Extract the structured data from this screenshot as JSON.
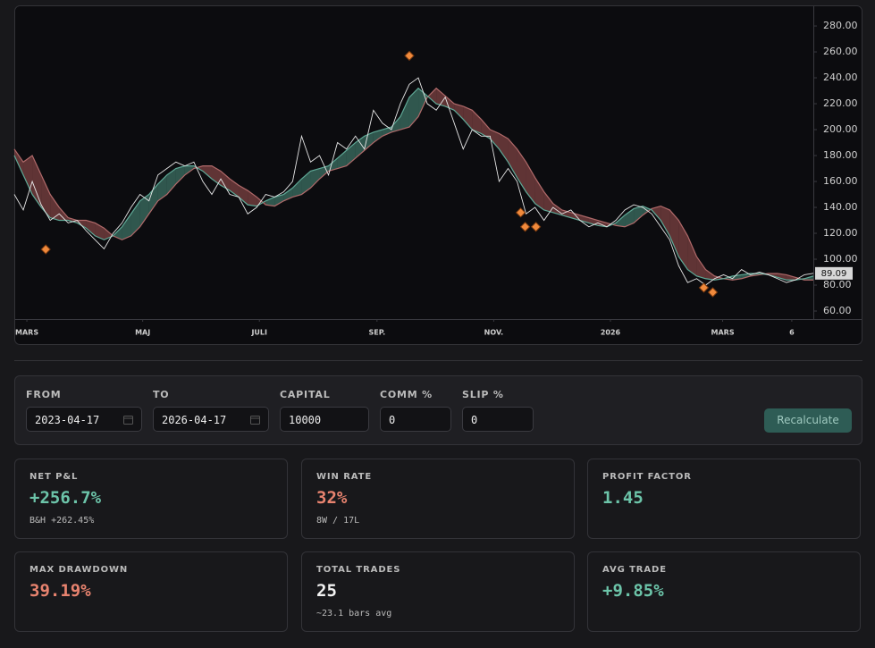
{
  "chart_data": {
    "type": "line",
    "xlim": [
      0,
      89
    ],
    "ylim": [
      53.8,
      295.9
    ],
    "yticks": [
      {
        "value": 60,
        "label": "60.00"
      },
      {
        "value": 80,
        "label": "80.00"
      },
      {
        "value": 100,
        "label": "100.00"
      },
      {
        "value": 120,
        "label": "120.00"
      },
      {
        "value": 140,
        "label": "140.00"
      },
      {
        "value": 160,
        "label": "160.00"
      },
      {
        "value": 180,
        "label": "180.00"
      },
      {
        "value": 200,
        "label": "200.00"
      },
      {
        "value": 220,
        "label": "220.00"
      },
      {
        "value": 240,
        "label": "240.00"
      },
      {
        "value": 260,
        "label": "260.00"
      },
      {
        "value": 280,
        "label": "280.00"
      }
    ],
    "xticks": [
      {
        "value": 1.4,
        "label": "MARS"
      },
      {
        "value": 14.3,
        "label": "MAJ"
      },
      {
        "value": 27.3,
        "label": "JULI"
      },
      {
        "value": 40.4,
        "label": "SEP."
      },
      {
        "value": 53.4,
        "label": "NOV."
      },
      {
        "value": 66.4,
        "label": "2026"
      },
      {
        "value": 78.9,
        "label": "MARS"
      },
      {
        "value": 86.6,
        "label": "6"
      }
    ],
    "x": [
      0,
      1,
      2,
      3,
      4,
      5,
      6,
      7,
      8,
      9,
      10,
      11,
      12,
      13,
      14,
      15,
      16,
      17,
      18,
      19,
      20,
      21,
      22,
      23,
      24,
      25,
      26,
      27,
      28,
      29,
      30,
      31,
      32,
      33,
      34,
      35,
      36,
      37,
      38,
      39,
      40,
      41,
      42,
      43,
      44,
      45,
      46,
      47,
      48,
      49,
      50,
      51,
      52,
      53,
      54,
      55,
      56,
      57,
      58,
      59,
      60,
      61,
      62,
      63,
      64,
      65,
      66,
      67,
      68,
      69,
      70,
      71,
      72,
      73,
      74,
      75,
      76,
      77,
      78,
      79,
      80,
      81,
      82,
      83,
      84,
      85,
      86,
      87,
      88,
      89
    ],
    "series": [
      {
        "color": "#e6e6e6",
        "values": [
          150,
          138,
          160,
          142,
          130,
          135,
          128,
          130,
          122,
          115,
          108,
          120,
          128,
          140,
          150,
          145,
          165,
          170,
          175,
          172,
          175,
          160,
          150,
          162,
          150,
          148,
          135,
          140,
          150,
          148,
          152,
          160,
          195,
          175,
          180,
          165,
          190,
          185,
          195,
          185,
          215,
          205,
          200,
          220,
          235,
          240,
          220,
          215,
          225,
          205,
          185,
          200,
          195,
          195,
          160,
          170,
          160,
          135,
          140,
          130,
          140,
          135,
          138,
          130,
          125,
          128,
          125,
          130,
          138,
          142,
          140,
          135,
          125,
          115,
          95,
          82,
          85,
          80,
          85,
          88,
          85,
          92,
          88,
          90,
          88,
          85,
          82,
          84,
          88,
          89.09
        ]
      },
      {
        "color": "#5fa896",
        "values": [
          180,
          165,
          150,
          140,
          132,
          130,
          130,
          128,
          124,
          118,
          115,
          118,
          125,
          135,
          145,
          150,
          158,
          165,
          170,
          172,
          172,
          168,
          162,
          157,
          153,
          148,
          142,
          141,
          145,
          148,
          150,
          155,
          162,
          168,
          170,
          172,
          178,
          184,
          190,
          195,
          198,
          200,
          202,
          210,
          225,
          232,
          226,
          220,
          218,
          215,
          208,
          200,
          197,
          193,
          185,
          175,
          163,
          152,
          143,
          138,
          136,
          134,
          132,
          130,
          128,
          126,
          125,
          128,
          134,
          139,
          141,
          138,
          130,
          118,
          102,
          92,
          87,
          85,
          84,
          85,
          87,
          88,
          89,
          89,
          88,
          86,
          84,
          84,
          85,
          87
        ]
      },
      {
        "color": "#b06a6a",
        "values": [
          185,
          175,
          180,
          165,
          150,
          140,
          132,
          130,
          130,
          128,
          124,
          118,
          115,
          118,
          125,
          135,
          145,
          150,
          158,
          165,
          170,
          172,
          172,
          168,
          162,
          157,
          153,
          148,
          142,
          141,
          145,
          148,
          150,
          155,
          162,
          168,
          170,
          172,
          178,
          184,
          190,
          195,
          198,
          200,
          202,
          210,
          225,
          232,
          226,
          220,
          218,
          215,
          208,
          200,
          197,
          193,
          185,
          175,
          163,
          152,
          143,
          138,
          136,
          134,
          132,
          130,
          128,
          126,
          125,
          128,
          134,
          139,
          141,
          138,
          130,
          118,
          102,
          92,
          87,
          85,
          84,
          85,
          87,
          88,
          89,
          89,
          88,
          86,
          84,
          84
        ]
      }
    ],
    "markers": {
      "color": "#f08a3c",
      "x": [
        3.5,
        44,
        56.4,
        56.9,
        58.1,
        76.8,
        77.8
      ],
      "values": [
        107.6,
        257,
        136,
        125,
        125,
        78,
        74.5
      ]
    },
    "last_price": 89.09
  },
  "form": {
    "fields": [
      {
        "label": "FROM",
        "value": "2023-04-17"
      },
      {
        "label": "TO",
        "value": "2026-04-17"
      },
      {
        "label": "CAPITAL",
        "value": "10000"
      },
      {
        "label": "COMM %",
        "value": "0"
      },
      {
        "label": "SLIP %",
        "value": "0"
      }
    ],
    "button": "Recalculate"
  },
  "stats": [
    {
      "label": "NET P&L",
      "value": "+256.7%",
      "sub": "B&H +262.45%"
    },
    {
      "label": "WIN RATE",
      "value": "32%",
      "sub": "8W / 17L"
    },
    {
      "label": "PROFIT FACTOR",
      "value": "1.45"
    },
    {
      "label": "MAX DRAWDOWN",
      "value": "39.19%"
    },
    {
      "label": "TOTAL TRADES",
      "value": "25",
      "sub": "~23.1 bars avg"
    },
    {
      "label": "AVG TRADE",
      "value": "+9.85%"
    }
  ]
}
